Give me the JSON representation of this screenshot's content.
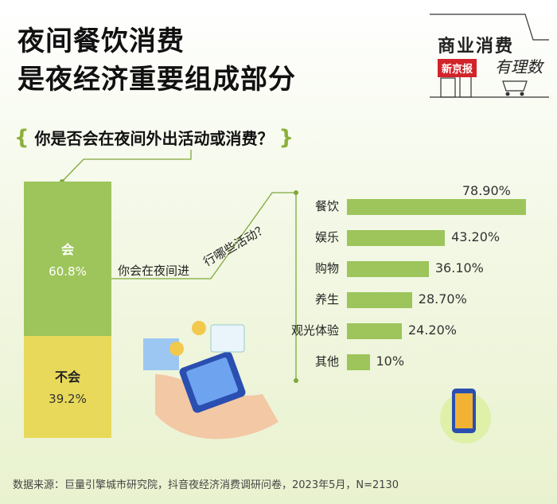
{
  "title": {
    "line1": "夜间餐饮消费",
    "line2": "是夜经济重要组成部分"
  },
  "brand": {
    "name": "商业消费",
    "tag": "新京报",
    "sub": "有理数"
  },
  "question": "你是否会在夜间外出活动或消费？",
  "sub_question_a": "你会在夜间进",
  "sub_question_b": "行哪些活动？",
  "source": "数据来源：巨量引擎城市研究院，抖音夜经济消费调研问卷，2023年5月，N=2130",
  "colors": {
    "green": "#9dc55b",
    "yellow": "#e8d95a",
    "line": "#7fa83a"
  },
  "chart_data": [
    {
      "type": "bar",
      "orientation": "stacked-vertical",
      "categories": [
        "会",
        "不会"
      ],
      "values": [
        60.8,
        39.2
      ],
      "value_labels": [
        "60.8%",
        "39.2%"
      ]
    },
    {
      "type": "bar",
      "orientation": "horizontal",
      "categories": [
        "餐饮",
        "娱乐",
        "购物",
        "养生",
        "观光体验",
        "其他"
      ],
      "values": [
        78.9,
        43.2,
        36.1,
        28.7,
        24.2,
        10.0
      ],
      "value_labels": [
        "78.90%",
        "43.20%",
        "36.10%",
        "28.70%",
        "24.20%",
        "10%"
      ],
      "xlim": [
        0,
        80
      ]
    }
  ]
}
